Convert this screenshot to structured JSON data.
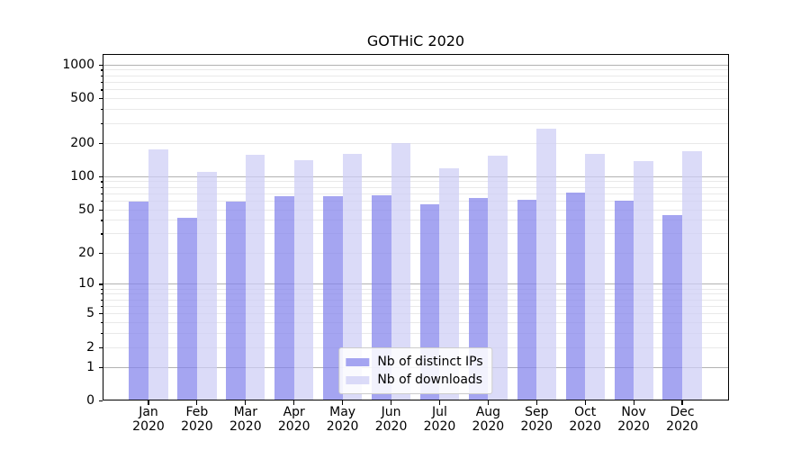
{
  "title": "GOTHiC 2020",
  "chart_data": {
    "type": "bar",
    "title": "GOTHiC 2020",
    "categories": [
      "Jan",
      "Feb",
      "Mar",
      "Apr",
      "May",
      "Jun",
      "Jul",
      "Aug",
      "Sep",
      "Oct",
      "Nov",
      "Dec"
    ],
    "category_year": "2020",
    "series": [
      {
        "name": "Nb of distinct IPs",
        "color": "rgba(130,130,235,0.72)",
        "values": [
          59,
          42,
          59,
          66,
          66,
          67,
          56,
          63,
          61,
          71,
          60,
          44
        ]
      },
      {
        "name": "Nb of downloads",
        "color": "rgba(205,205,245,0.72)",
        "values": [
          175,
          110,
          157,
          140,
          159,
          198,
          117,
          154,
          265,
          159,
          136,
          169
        ]
      }
    ],
    "xlabel": "",
    "ylabel": "",
    "yscale": "log1p",
    "ylim": [
      0,
      1244
    ],
    "yticks": [
      1000,
      500,
      200,
      100,
      50,
      20,
      10,
      5,
      2,
      1,
      0
    ],
    "major_gridlines": [
      1,
      10,
      100,
      1000
    ],
    "minor_gridline_decades": [
      1,
      10,
      100
    ],
    "grid": true,
    "legend_position": "lower center"
  }
}
